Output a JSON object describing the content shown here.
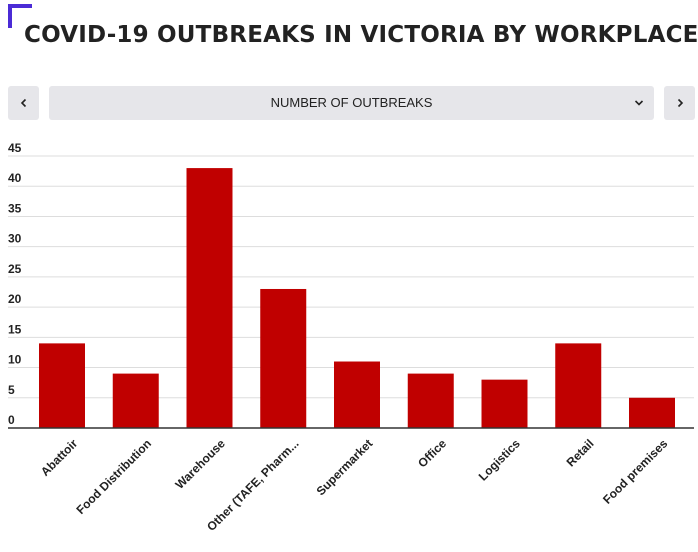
{
  "title": "COVID-19 OUTBREAKS IN VICTORIA BY WORKPLACE",
  "controls": {
    "selected": "NUMBER OF OUTBREAKS"
  },
  "colors": {
    "bar": "#c00000",
    "accent": "#4b2bd6",
    "control_bg": "#e6e6ea"
  },
  "chart_data": {
    "type": "bar",
    "categories": [
      "Abattoir",
      "Food Distribution",
      "Warehouse",
      "Other (TAFE, Pharm...",
      "Supermarket",
      "Office",
      "Logistics",
      "Retail",
      "Food premises"
    ],
    "values": [
      14,
      9,
      43,
      23,
      11,
      9,
      8,
      14,
      5
    ],
    "yticks": [
      0,
      5,
      10,
      15,
      20,
      25,
      30,
      35,
      40,
      45
    ],
    "ylim": [
      0,
      45
    ],
    "grid": true,
    "legend": "none"
  }
}
